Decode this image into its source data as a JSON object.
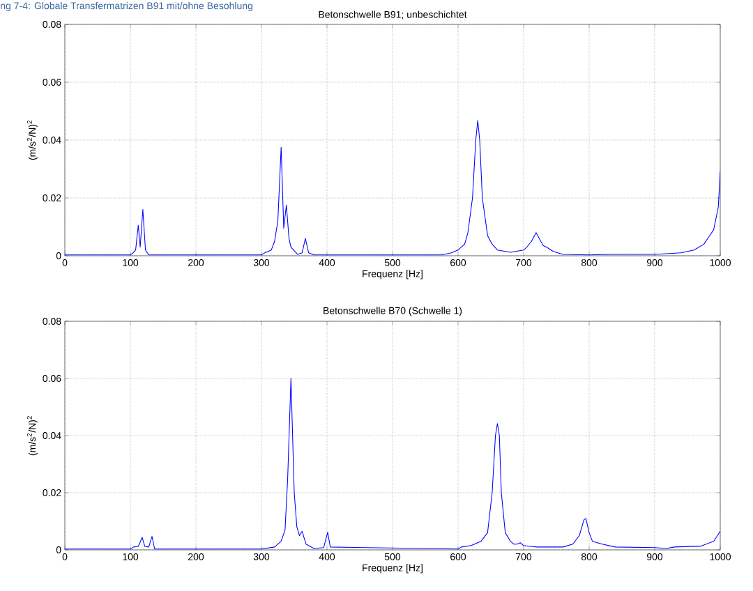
{
  "chart_data": [
    {
      "type": "line",
      "title": "Betonschwelle B91; unbeschichtet",
      "xlabel": "Frequenz [Hz]",
      "ylabel": "(m/s$^{2}$/N)$^{2}$",
      "annotations": [
        "ng 7-4: Globale Transfermatrizen B91 mit/ohne Besohlung"
      ],
      "x": [
        0,
        100,
        104,
        108,
        112,
        115,
        119,
        123,
        128,
        300,
        305,
        315,
        320,
        325,
        330,
        334,
        338,
        342,
        345,
        355,
        362,
        367,
        372,
        380,
        575,
        590,
        600,
        610,
        615,
        622,
        627,
        630,
        633,
        637,
        645,
        652,
        660,
        680,
        700,
        705,
        712,
        719,
        725,
        730,
        735,
        745,
        760,
        800,
        830,
        900,
        940,
        960,
        975,
        990,
        997,
        1000
      ],
      "series": [
        {
          "color": "#0000ff",
          "values": [
            0.0003,
            0.0003,
            0.001,
            0.002,
            0.0105,
            0.003,
            0.016,
            0.002,
            0.0003,
            0.0003,
            0.001,
            0.002,
            0.005,
            0.012,
            0.0375,
            0.0095,
            0.0175,
            0.006,
            0.003,
            0.0005,
            0.001,
            0.006,
            0.001,
            0.0003,
            0.0003,
            0.001,
            0.002,
            0.004,
            0.008,
            0.02,
            0.04,
            0.0468,
            0.04,
            0.02,
            0.007,
            0.004,
            0.002,
            0.0012,
            0.002,
            0.003,
            0.005,
            0.008,
            0.0055,
            0.0035,
            0.003,
            0.0015,
            0.0005,
            0.0003,
            0.0005,
            0.0005,
            0.001,
            0.002,
            0.004,
            0.009,
            0.0168,
            0.029
          ]
        }
      ],
      "xlim": [
        0,
        1000
      ],
      "ylim": [
        0,
        0.08
      ],
      "xticks": [
        0,
        100,
        200,
        300,
        400,
        500,
        600,
        700,
        800,
        900,
        1000
      ],
      "yticks": [
        0,
        0.02,
        0.04,
        0.06,
        0.08
      ],
      "grid": true
    },
    {
      "type": "line",
      "title": "Betonschwelle B70 (Schwelle 1)",
      "xlabel": "Frequenz [Hz]",
      "ylabel": "(m/s$^{2}$/N)$^{2}$",
      "x": [
        0,
        100,
        105,
        112,
        118,
        122,
        128,
        133,
        137,
        300,
        320,
        330,
        336,
        340,
        345,
        350,
        354,
        358,
        362,
        368,
        380,
        395,
        401,
        405,
        600,
        605,
        620,
        635,
        645,
        652,
        657,
        660,
        663,
        666,
        672,
        680,
        685,
        690,
        695,
        700,
        720,
        760,
        775,
        785,
        792,
        795,
        800,
        805,
        820,
        840,
        900,
        918,
        930,
        970,
        990,
        1000
      ],
      "series": [
        {
          "color": "#0000ff",
          "values": [
            0.0003,
            0.0003,
            0.001,
            0.0012,
            0.0044,
            0.0012,
            0.001,
            0.0047,
            0.0003,
            0.0003,
            0.001,
            0.003,
            0.007,
            0.025,
            0.06,
            0.02,
            0.008,
            0.005,
            0.0065,
            0.002,
            0.0005,
            0.0008,
            0.0062,
            0.001,
            0.0003,
            0.001,
            0.0015,
            0.003,
            0.006,
            0.02,
            0.04,
            0.0442,
            0.04,
            0.02,
            0.006,
            0.003,
            0.002,
            0.002,
            0.0025,
            0.0015,
            0.001,
            0.001,
            0.002,
            0.005,
            0.0105,
            0.011,
            0.006,
            0.003,
            0.002,
            0.001,
            0.0008,
            0.0005,
            0.001,
            0.0013,
            0.003,
            0.0065
          ]
        }
      ],
      "xlim": [
        0,
        1000
      ],
      "ylim": [
        0,
        0.08
      ],
      "xticks": [
        0,
        100,
        200,
        300,
        400,
        500,
        600,
        700,
        800,
        900,
        1000
      ],
      "yticks": [
        0,
        0.02,
        0.04,
        0.06,
        0.08
      ],
      "grid": true
    }
  ]
}
